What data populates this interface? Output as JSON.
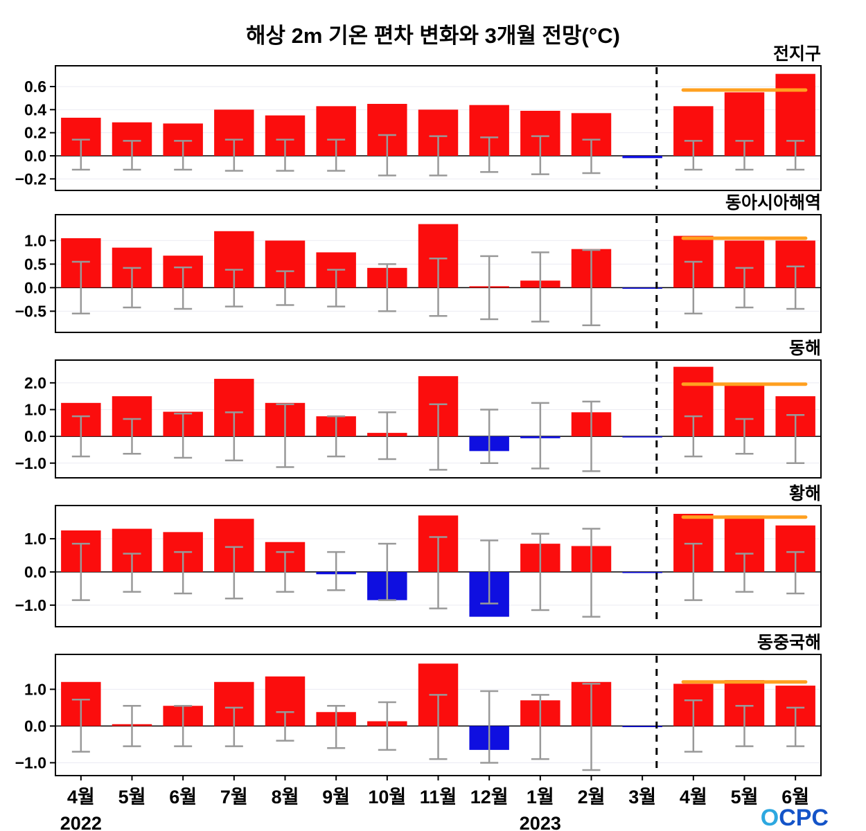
{
  "title": "해상 2m 기온 편차 변화와 3개월 전망(°C)",
  "logo": {
    "text": "OCPC"
  },
  "colors": {
    "positive": "#fb0d0d",
    "negative": "#0f0fe0",
    "error_bar": "#999999",
    "forecast_line": "#ffa020",
    "grid": "#ebebf2",
    "axis": "#000000"
  },
  "x_axis": {
    "labels": [
      "4월",
      "5월",
      "6월",
      "7월",
      "8월",
      "9월",
      "10월",
      "11월",
      "12월",
      "1월",
      "2월",
      "3월",
      "4월",
      "5월",
      "6월"
    ],
    "year_labels": [
      {
        "text": "2022",
        "position_index": 0
      },
      {
        "text": "2023",
        "position_index": 9
      }
    ],
    "forecast_start_index": 12
  },
  "chart_data": {
    "type": "bar",
    "title": "해상 2m 기온 편차 변화와 3개월 전망(°C)",
    "categories": [
      "4월",
      "5월",
      "6월",
      "7월",
      "8월",
      "9월",
      "10월",
      "11월",
      "12월",
      "1월",
      "2월",
      "3월",
      "4월",
      "5월",
      "6월"
    ],
    "observation_months": 12,
    "forecast_months": 3,
    "panels": [
      {
        "region": "전지구",
        "ylim": [
          -0.3,
          0.78
        ],
        "yticks": [
          -0.2,
          0.0,
          0.2,
          0.4,
          0.6
        ],
        "values": [
          0.33,
          0.29,
          0.28,
          0.4,
          0.35,
          0.43,
          0.45,
          0.4,
          0.44,
          0.39,
          0.37,
          -0.02,
          0.43,
          0.55,
          0.71
        ],
        "error_low": [
          -0.12,
          -0.12,
          -0.12,
          -0.13,
          -0.13,
          -0.13,
          -0.17,
          -0.17,
          -0.14,
          -0.16,
          -0.15,
          null,
          -0.12,
          -0.12,
          -0.12
        ],
        "error_high": [
          0.14,
          0.13,
          0.13,
          0.14,
          0.14,
          0.14,
          0.18,
          0.17,
          0.16,
          0.17,
          0.14,
          null,
          0.13,
          0.13,
          0.13
        ],
        "forecast_line_y": 0.57
      },
      {
        "region": "동아시아해역",
        "ylim": [
          -0.95,
          1.55
        ],
        "yticks": [
          -0.5,
          0.0,
          0.5,
          1.0
        ],
        "values": [
          1.05,
          0.85,
          0.68,
          1.2,
          1.0,
          0.75,
          0.42,
          1.35,
          0.03,
          0.15,
          0.82,
          -0.02,
          1.1,
          1.0,
          1.0
        ],
        "error_low": [
          -0.55,
          -0.42,
          -0.45,
          -0.4,
          -0.37,
          -0.4,
          -0.5,
          -0.6,
          -0.67,
          -0.72,
          -0.8,
          null,
          -0.55,
          -0.42,
          -0.45
        ],
        "error_high": [
          0.55,
          0.42,
          0.43,
          0.38,
          0.35,
          0.38,
          0.5,
          0.62,
          0.67,
          0.75,
          0.8,
          null,
          0.55,
          0.42,
          0.45
        ],
        "forecast_line_y": 1.05
      },
      {
        "region": "동해",
        "ylim": [
          -1.55,
          2.85
        ],
        "yticks": [
          -1.0,
          0.0,
          1.0,
          2.0
        ],
        "values": [
          1.25,
          1.5,
          0.92,
          2.15,
          1.25,
          0.75,
          0.13,
          2.25,
          -0.55,
          -0.07,
          0.9,
          -0.04,
          2.6,
          1.9,
          1.5
        ],
        "error_low": [
          -0.75,
          -0.65,
          -0.8,
          -0.9,
          -1.15,
          -0.75,
          -0.85,
          -1.25,
          -1.0,
          -1.2,
          -1.3,
          null,
          -0.75,
          -0.65,
          -1.0
        ],
        "error_high": [
          0.75,
          0.65,
          0.85,
          0.9,
          1.2,
          0.75,
          0.9,
          1.2,
          1.0,
          1.25,
          1.3,
          null,
          0.75,
          0.65,
          0.8
        ],
        "forecast_line_y": 1.95
      },
      {
        "region": "황해",
        "ylim": [
          -1.65,
          2.0
        ],
        "yticks": [
          -1.0,
          0.0,
          1.0
        ],
        "values": [
          1.25,
          1.3,
          1.2,
          1.6,
          0.9,
          -0.07,
          -0.85,
          1.7,
          -1.35,
          0.85,
          0.78,
          -0.02,
          1.75,
          1.7,
          1.4
        ],
        "error_low": [
          -0.85,
          -0.6,
          -0.65,
          -0.8,
          -0.6,
          -0.55,
          -0.85,
          -1.1,
          -0.95,
          -1.15,
          -1.35,
          null,
          -0.85,
          -0.6,
          -0.65
        ],
        "error_high": [
          0.85,
          0.55,
          0.6,
          0.75,
          0.6,
          0.6,
          0.85,
          1.05,
          0.95,
          1.15,
          1.3,
          null,
          0.85,
          0.55,
          0.6
        ],
        "forecast_line_y": 1.65
      },
      {
        "region": "동중국해",
        "ylim": [
          -1.35,
          1.95
        ],
        "yticks": [
          -1.0,
          0.0,
          1.0
        ],
        "values": [
          1.2,
          0.05,
          0.55,
          1.2,
          1.35,
          0.38,
          0.13,
          1.7,
          -0.65,
          0.7,
          1.2,
          -0.02,
          1.15,
          1.25,
          1.1
        ],
        "error_low": [
          -0.7,
          -0.55,
          -0.55,
          -0.55,
          -0.4,
          -0.6,
          -0.65,
          -0.9,
          -1.0,
          -0.9,
          -1.2,
          null,
          -0.7,
          -0.55,
          -0.55
        ],
        "error_high": [
          0.72,
          0.55,
          0.55,
          0.5,
          0.38,
          0.55,
          0.65,
          0.85,
          0.95,
          0.85,
          1.15,
          null,
          0.7,
          0.55,
          0.5
        ],
        "forecast_line_y": 1.2
      }
    ]
  }
}
